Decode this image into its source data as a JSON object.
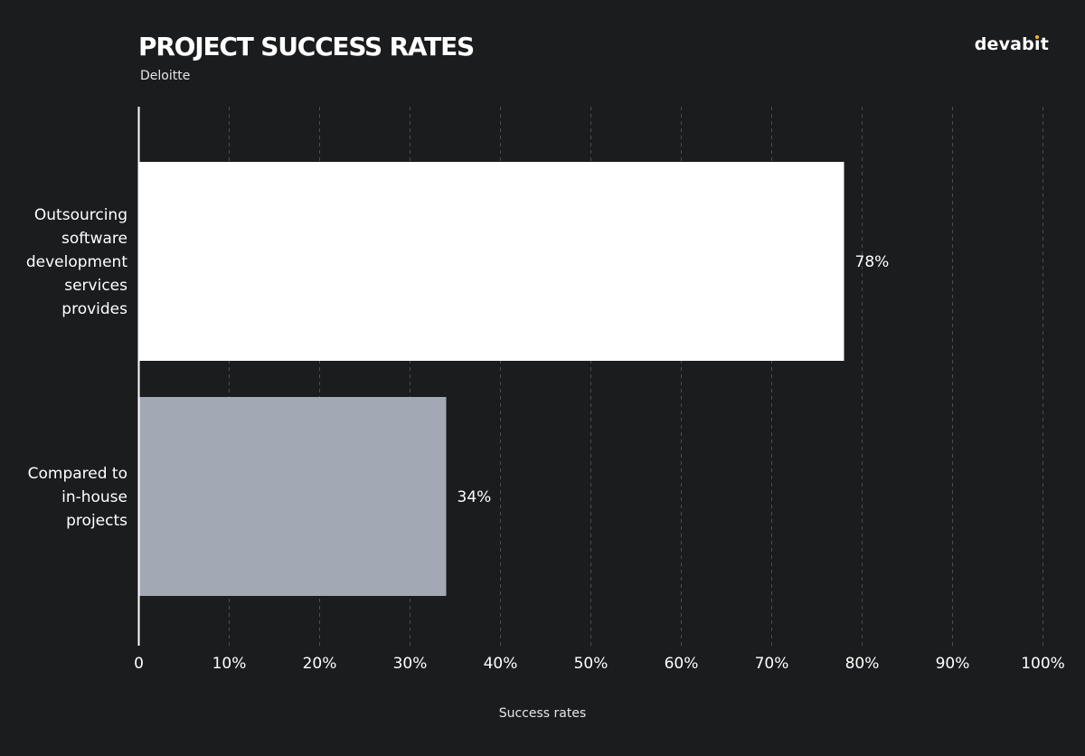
{
  "header": {
    "title": "PROJECT SUCCESS RATES",
    "subtitle": "Deloitte",
    "brand": "devabit"
  },
  "chart_data": {
    "type": "bar",
    "orientation": "horizontal",
    "title": "PROJECT SUCCESS RATES",
    "subtitle": "Deloitte",
    "xlabel": "Success rates",
    "ylabel": "",
    "xlim": [
      0,
      100
    ],
    "x_ticks": [
      0,
      10,
      20,
      30,
      40,
      50,
      60,
      70,
      80,
      90,
      100
    ],
    "x_tick_labels": [
      "0",
      "10%",
      "20%",
      "30%",
      "40%",
      "50%",
      "60%",
      "70%",
      "80%",
      "90%",
      "100%"
    ],
    "grid": "vertical dashed",
    "categories": [
      [
        "Outsourcing",
        "software",
        "development",
        "services",
        "provides"
      ],
      [
        "Compared to",
        "in-house",
        "projects"
      ]
    ],
    "values": [
      78,
      34
    ],
    "value_labels": [
      "78%",
      "34%"
    ],
    "bar_colors": [
      "#ffffff",
      "#a3a9b4"
    ]
  },
  "colors": {
    "background": "#1b1c1e",
    "grid": "#4a4c50",
    "axis": "#ffffff",
    "accent": "#f5b82e"
  }
}
